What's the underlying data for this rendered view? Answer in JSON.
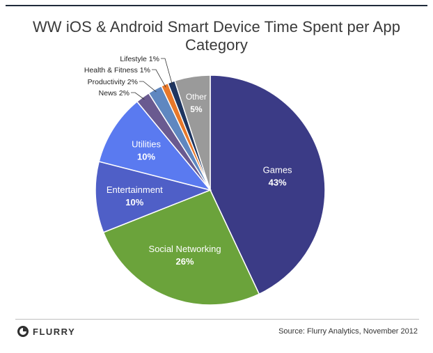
{
  "chart_data": {
    "type": "pie",
    "title": "WW iOS & Android Smart Device Time Spent per App Category",
    "slices": [
      {
        "label": "Games",
        "value": 43,
        "value_label": "43%",
        "color": "#3b3b86"
      },
      {
        "label": "Social Networking",
        "value": 26,
        "value_label": "26%",
        "color": "#6ba33b"
      },
      {
        "label": "Entertainment",
        "value": 10,
        "value_label": "10%",
        "color": "#4f5fc7"
      },
      {
        "label": "Utilities",
        "value": 10,
        "value_label": "10%",
        "color": "#5a7af0"
      },
      {
        "label": "News",
        "value": 2,
        "value_label": "2%",
        "color": "#6a5a90"
      },
      {
        "label": "Productivity",
        "value": 2,
        "value_label": "2%",
        "color": "#5f87c0"
      },
      {
        "label": "Health & Fitness",
        "value": 1,
        "value_label": "1%",
        "color": "#e8782a"
      },
      {
        "label": "Lifestyle",
        "value": 1,
        "value_label": "1%",
        "color": "#1e3560"
      },
      {
        "label": "Other",
        "value": 5,
        "value_label": "5%",
        "color": "#9a9a9a"
      }
    ],
    "external_labels": [
      "Lifestyle 1%",
      "Health & Fitness 1%",
      "Productivity 2%",
      "News 2%"
    ]
  },
  "footer": {
    "logo_text": "FLURRY",
    "source": "Source: Flurry Analytics, November 2012"
  }
}
